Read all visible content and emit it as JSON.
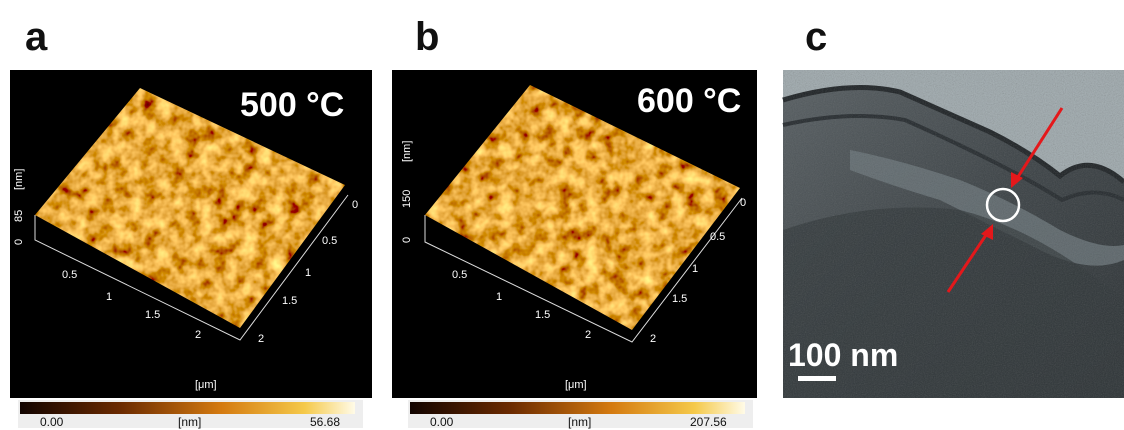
{
  "panels": [
    {
      "label": "a",
      "temperature": "500 °C",
      "z_axis_label": "[nm]",
      "z_ticks": [
        "0",
        "85"
      ],
      "x_ticks": [
        "0.5",
        "1",
        "1.5",
        "2"
      ],
      "y_ticks": [
        "0",
        "0.5",
        "1",
        "1.5",
        "2"
      ],
      "x_axis_label": "[μm]",
      "colorbar": {
        "min": "0.00",
        "unit": "[nm]",
        "max": "56.68"
      }
    },
    {
      "label": "b",
      "temperature": "600 °C",
      "z_axis_label": "[nm]",
      "z_ticks": [
        "0",
        "150"
      ],
      "x_ticks": [
        "0.5",
        "1",
        "1.5",
        "2"
      ],
      "y_ticks": [
        "0",
        "0.5",
        "1",
        "1.5",
        "2"
      ],
      "x_axis_label": "[μm]",
      "colorbar": {
        "min": "0.00",
        "unit": "[nm]",
        "max": "207.56"
      }
    },
    {
      "label": "c",
      "scale_bar": "100 nm"
    }
  ]
}
